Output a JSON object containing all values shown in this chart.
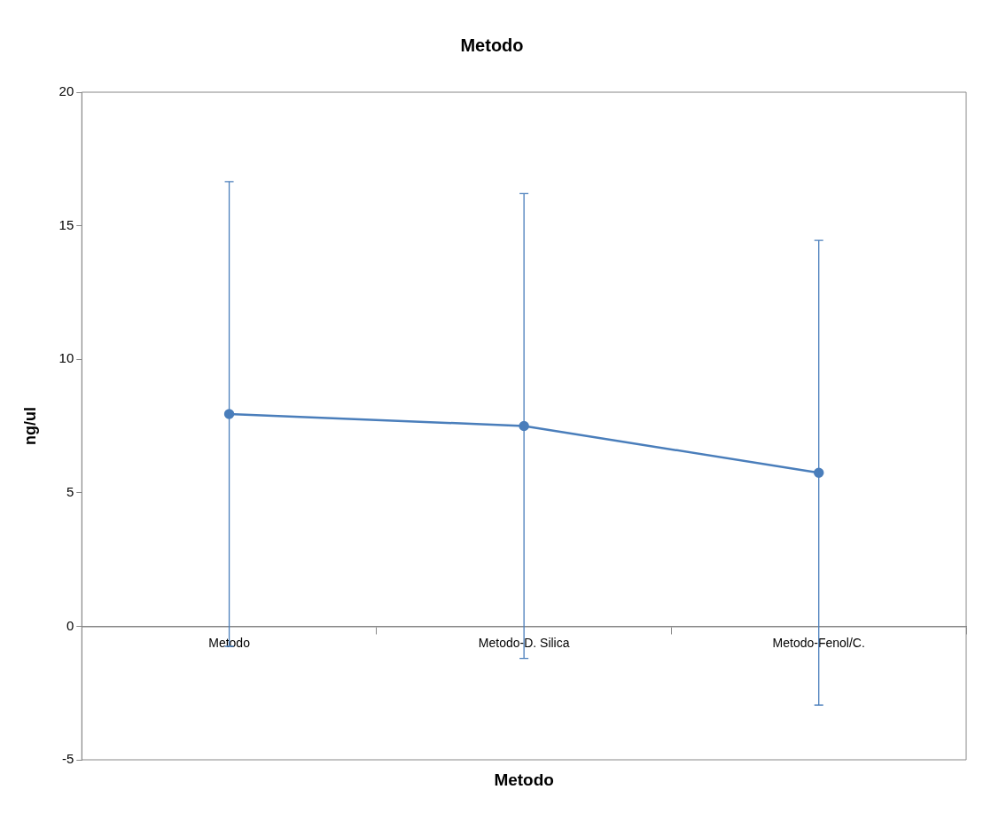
{
  "chart_data": {
    "type": "line",
    "title": "Metodo",
    "xlabel": "Metodo",
    "ylabel": "ng/ul",
    "categories": [
      "Metodo",
      "Metodo-D. Silica",
      "Metodo-Fenol/C."
    ],
    "series": [
      {
        "color": "#4a7ebb",
        "values": [
          7.95,
          7.5,
          5.75
        ],
        "errors": [
          8.7,
          8.7,
          8.7
        ]
      }
    ],
    "ylim": [
      -5,
      20
    ],
    "yticks": [
      -5,
      0,
      5,
      10,
      15,
      20
    ],
    "grid": false,
    "legend": false,
    "marker": "circle",
    "line_style": "solid"
  }
}
